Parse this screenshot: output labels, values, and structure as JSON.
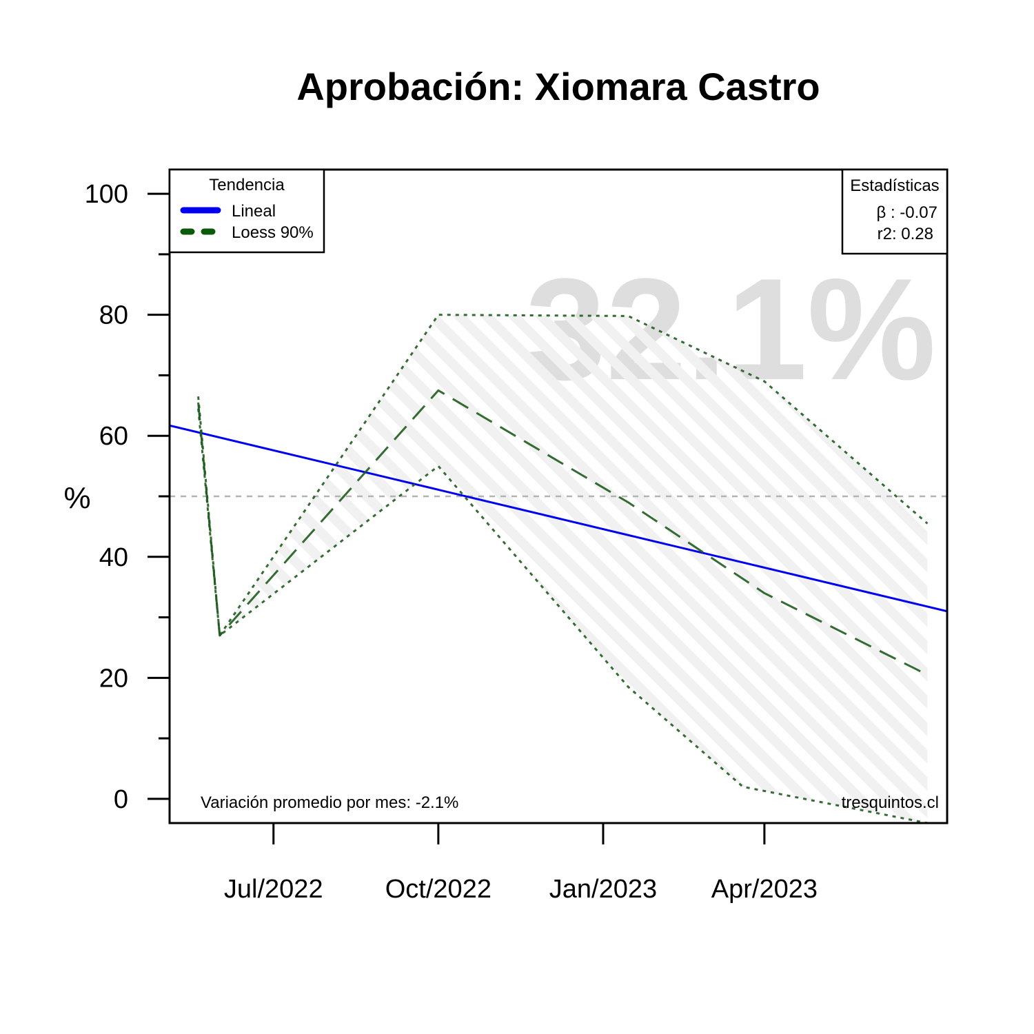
{
  "chart_data": {
    "type": "line",
    "title": "Aprobación: Xiomara Castro",
    "xlabel": "",
    "ylabel": "%",
    "ylim": [
      -4,
      104
    ],
    "xlim": [
      "2022-05-04",
      "2023-07-12"
    ],
    "x_ticks": [
      {
        "date": "2022-07-01",
        "label": "Jul/2022"
      },
      {
        "date": "2022-10-01",
        "label": "Oct/2022"
      },
      {
        "date": "2023-01-01",
        "label": "Jan/2023"
      },
      {
        "date": "2023-04-01",
        "label": "Apr/2023"
      }
    ],
    "y_ticks_labeled": [
      0,
      20,
      40,
      60,
      80,
      100
    ],
    "y_ticks_minor": [
      10,
      30,
      50,
      70,
      90
    ],
    "reference_line_y": 50,
    "series": [
      {
        "name": "Lineal",
        "style": "solid",
        "color": "#0000ee",
        "points": [
          {
            "x": "2022-05-04",
            "y": 61.7
          },
          {
            "x": "2023-07-12",
            "y": 31.0
          }
        ]
      },
      {
        "name": "Loess 90%",
        "style": "dashed",
        "color": "#1e5c1e",
        "points": [
          {
            "x": "2022-05-20",
            "y": 65.5
          },
          {
            "x": "2022-06-01",
            "y": 27.0
          },
          {
            "x": "2022-10-01",
            "y": 67.5
          },
          {
            "x": "2023-01-15",
            "y": 49.0
          },
          {
            "x": "2023-04-01",
            "y": 34.0
          },
          {
            "x": "2023-07-01",
            "y": 20.5
          }
        ]
      },
      {
        "style": "dotted",
        "color": "#1e5c1e",
        "points": [
          {
            "x": "2022-05-20",
            "y": 66.5
          },
          {
            "x": "2022-06-01",
            "y": 27.0
          },
          {
            "x": "2022-10-01",
            "y": 80.0
          },
          {
            "x": "2023-01-15",
            "y": 79.8
          },
          {
            "x": "2023-04-01",
            "y": 69.0
          },
          {
            "x": "2023-07-01",
            "y": 45.5
          }
        ]
      },
      {
        "style": "dotted",
        "color": "#1e5c1e",
        "points": [
          {
            "x": "2022-05-20",
            "y": 64.5
          },
          {
            "x": "2022-06-01",
            "y": 27.0
          },
          {
            "x": "2022-10-01",
            "y": 55.0
          },
          {
            "x": "2023-01-15",
            "y": 18.5
          },
          {
            "x": "2023-03-20",
            "y": 2.0
          },
          {
            "x": "2023-07-01",
            "y": -4.0
          }
        ]
      }
    ],
    "legend": {
      "placement": "top-left",
      "title": "Tendencia",
      "entries": [
        {
          "label": "Lineal",
          "style": "solid",
          "color": "#0000ee"
        },
        {
          "label": "Loess 90%",
          "style": "dashed",
          "color": "#0b5a0b"
        }
      ]
    },
    "stats": {
      "placement": "top-right",
      "title": "Estadísticas",
      "beta": "β : -0.07",
      "r2": "r2: 0.28"
    },
    "watermark": "32.1%",
    "note": "Variación promedio por mes: -2.1%",
    "credit": "tresquintos.cl",
    "grid": false
  },
  "colors": {
    "lineal": "#0000ee",
    "loess": "#1e5c1e",
    "reference": "#b3b3b3",
    "watermark": "#dedede",
    "band_hatch": "#ebebeb"
  }
}
